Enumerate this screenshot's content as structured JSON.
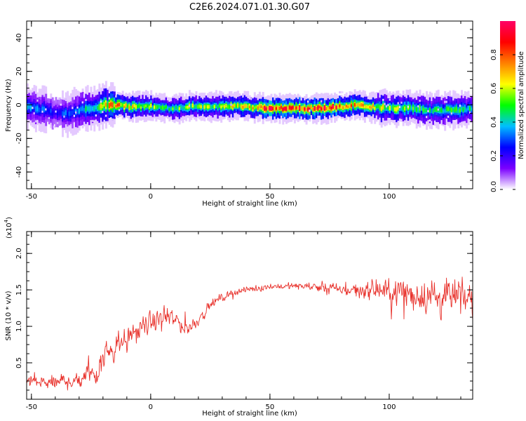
{
  "figure": {
    "title": "C2E6.2024.071.01.30.G07"
  },
  "chart_data": [
    {
      "type": "heatmap",
      "title": "C2E6.2024.071.01.30.G07",
      "xlabel": "Height of straight line (km)",
      "ylabel": "Frequency (Hz)",
      "xlim": [
        -52,
        135
      ],
      "ylim": [
        -50,
        50
      ],
      "x_ticks": [
        -50,
        0,
        50,
        100
      ],
      "y_ticks": [
        -40,
        -20,
        0,
        20,
        40
      ],
      "colorbar": {
        "label": "Normalized spectral amplitude",
        "range": [
          0,
          1
        ],
        "ticks": [
          0.0,
          0.2,
          0.4,
          0.6,
          0.8
        ],
        "colormap": [
          "#ffffff",
          "#7b00ff",
          "#0000ff",
          "#00bfff",
          "#00ff00",
          "#ffff00",
          "#ff8000",
          "#ff0000",
          "#ff0066"
        ]
      },
      "ridge": {
        "x": [
          -52,
          -45,
          -40,
          -35,
          -30,
          -25,
          -20,
          -15,
          -10,
          -5,
          0,
          5,
          8,
          10,
          15,
          20,
          30,
          40,
          50,
          60,
          70,
          80,
          85,
          90,
          100,
          110,
          115,
          120,
          125,
          130,
          135
        ],
        "freq": [
          -1,
          -3,
          -5,
          -5,
          -3,
          -2,
          0,
          0,
          -1,
          -1,
          -1,
          -1,
          -3,
          -2,
          -1,
          -1,
          -1,
          -1,
          -2,
          -2,
          -2,
          -1,
          0,
          -1,
          -2,
          -2,
          -3,
          -3,
          -3,
          -3,
          -2
        ],
        "amplitude": [
          0.35,
          0.3,
          0.25,
          0.3,
          0.35,
          0.45,
          0.6,
          0.75,
          0.6,
          0.6,
          0.55,
          0.55,
          0.45,
          0.55,
          0.55,
          0.55,
          0.6,
          0.65,
          0.9,
          0.85,
          0.9,
          0.8,
          0.7,
          0.65,
          0.55,
          0.5,
          0.45,
          0.45,
          0.45,
          0.45,
          0.45
        ]
      }
    },
    {
      "type": "line",
      "xlabel": "Height of straight line (km)",
      "ylabel": "SNR (10 * v/v)",
      "y_multiplier": "(x10",
      "y_multiplier_exp": "4",
      "y_multiplier_close": ")",
      "xlim": [
        -52,
        135
      ],
      "ylim": [
        0,
        2.3
      ],
      "x_ticks": [
        -50,
        0,
        50,
        100
      ],
      "y_ticks": [
        0.5,
        1.0,
        1.5,
        2.0
      ],
      "line_color": "#e8302a",
      "envelope": {
        "x": [
          -52,
          -45,
          -40,
          -35,
          -30,
          -25,
          -22,
          -20,
          -15,
          -10,
          -5,
          0,
          5,
          10,
          15,
          20,
          25,
          30,
          35,
          40,
          50,
          60,
          70,
          80,
          90,
          100,
          110,
          120,
          130,
          135
        ],
        "mean": [
          0.25,
          0.22,
          0.22,
          0.25,
          0.28,
          0.35,
          0.45,
          0.6,
          0.75,
          0.85,
          0.95,
          1.05,
          1.1,
          1.1,
          0.95,
          1.1,
          1.3,
          1.4,
          1.47,
          1.5,
          1.55,
          1.55,
          1.55,
          1.5,
          1.5,
          1.48,
          1.45,
          1.4,
          1.4,
          1.35
        ],
        "spread": [
          0.18,
          0.15,
          0.15,
          0.18,
          0.2,
          0.25,
          0.3,
          0.35,
          0.3,
          0.25,
          0.22,
          0.2,
          0.2,
          0.2,
          0.15,
          0.12,
          0.1,
          0.08,
          0.07,
          0.07,
          0.06,
          0.07,
          0.09,
          0.12,
          0.18,
          0.25,
          0.35,
          0.4,
          0.35,
          0.3
        ]
      }
    }
  ]
}
